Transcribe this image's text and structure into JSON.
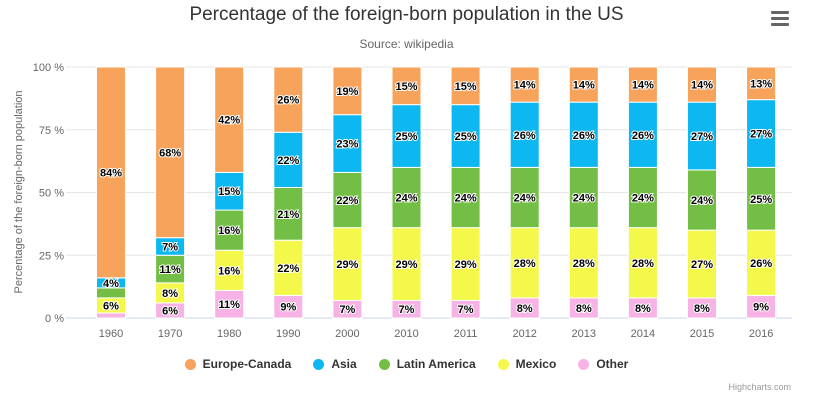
{
  "chart_data": {
    "type": "bar",
    "stacking": "percent",
    "title": "Percentage of the foreign-born population in the US",
    "subtitle": "Source: wikipedia",
    "xlabel": "",
    "ylabel": "Percentage of the foreign-born population",
    "ylim": [
      0,
      100
    ],
    "yticks": [
      "0 %",
      "25 %",
      "50 %",
      "75 %",
      "100 %"
    ],
    "grid": true,
    "legend_position": "bottom",
    "categories": [
      "1960",
      "1970",
      "1980",
      "1990",
      "2000",
      "2010",
      "2011",
      "2012",
      "2013",
      "2014",
      "2015",
      "2016"
    ],
    "series": [
      {
        "name": "Europe-Canada",
        "color": "#f7a35c",
        "values": [
          84,
          68,
          42,
          26,
          19,
          15,
          15,
          14,
          14,
          14,
          14,
          13
        ]
      },
      {
        "name": "Asia",
        "color": "#0db7ef",
        "values": [
          4,
          7,
          15,
          22,
          23,
          25,
          25,
          26,
          26,
          26,
          27,
          27
        ]
      },
      {
        "name": "Latin America",
        "color": "#73bf45",
        "values": [
          4,
          11,
          16,
          21,
          22,
          24,
          24,
          24,
          24,
          24,
          24,
          25
        ]
      },
      {
        "name": "Mexico",
        "color": "#f4f84b",
        "values": [
          6,
          8,
          16,
          22,
          29,
          29,
          29,
          28,
          28,
          28,
          27,
          26
        ]
      },
      {
        "name": "Other",
        "color": "#f7b2e6",
        "values": [
          2,
          6,
          11,
          9,
          7,
          7,
          7,
          8,
          8,
          8,
          8,
          9
        ]
      }
    ],
    "hidden_labels": [
      {
        "series": "Other",
        "category": "1960"
      },
      {
        "series": "Latin America",
        "category": "1960"
      }
    ]
  },
  "menu_icon": "hamburger-menu-icon",
  "credits": "Highcharts.com"
}
